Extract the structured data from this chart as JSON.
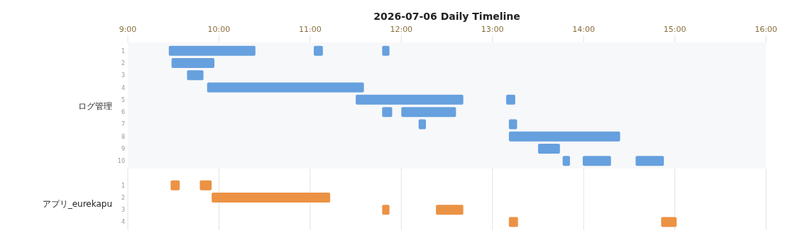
{
  "chart_data": [
    {
      "type": "bar",
      "orientation": "horizontal",
      "title": "2026-07-06 Daily Timeline",
      "ylabel": "ログ管理",
      "categories": [
        "1",
        "2",
        "3",
        "4",
        "5",
        "6",
        "7",
        "8",
        "9",
        "10"
      ],
      "xlim": [
        9,
        16
      ],
      "xticks": [
        {
          "value": 9,
          "label": "9:00"
        },
        {
          "value": 10,
          "label": "10:00"
        },
        {
          "value": 11,
          "label": "11:00"
        },
        {
          "value": 12,
          "label": "12:00"
        },
        {
          "value": 13,
          "label": "13:00"
        },
        {
          "value": 14,
          "label": "14:00"
        },
        {
          "value": 15,
          "label": "15:00"
        },
        {
          "value": 16,
          "label": "16:00"
        }
      ],
      "grid": false,
      "series": [
        {
          "color": "#66a0de",
          "base": [
            9.45,
            9.48,
            9.65,
            9.87,
            11.5,
            11.79,
            12.19,
            13.18,
            13.5,
            13.77
          ],
          "values": [
            0.95,
            0.47,
            0.18,
            1.72,
            1.18,
            0.11,
            0.08,
            1.22,
            0.24,
            0.08
          ]
        },
        {
          "color": "#66a0de",
          "base": [
            11.04,
            null,
            null,
            null,
            13.15,
            12.0,
            13.18,
            null,
            null,
            13.99
          ],
          "values": [
            0.1,
            null,
            null,
            null,
            0.1,
            0.6,
            0.09,
            null,
            null,
            0.31
          ]
        },
        {
          "color": "#66a0de",
          "base": [
            11.79,
            null,
            null,
            null,
            null,
            null,
            null,
            null,
            null,
            14.57
          ],
          "values": [
            0.08,
            null,
            null,
            null,
            null,
            null,
            null,
            null,
            null,
            0.31
          ]
        }
      ]
    },
    {
      "type": "bar",
      "orientation": "horizontal",
      "ylabel": "アプリ_eurekapu",
      "categories": [
        "1",
        "2",
        "3",
        "4"
      ],
      "xlim": [
        9,
        16
      ],
      "xticks": [
        {
          "value": 9,
          "label": null
        },
        {
          "value": 10,
          "label": null
        },
        {
          "value": 11,
          "label": null
        },
        {
          "value": 12,
          "label": null
        },
        {
          "value": 13,
          "label": null
        },
        {
          "value": 14,
          "label": null
        },
        {
          "value": 15,
          "label": null
        },
        {
          "value": 16,
          "label": null
        }
      ],
      "grid": "x",
      "tick_labels": "y",
      "series": [
        {
          "color": "#ec9244",
          "base": [
            9.47,
            9.92,
            11.79,
            13.18
          ],
          "values": [
            0.1,
            1.3,
            0.08,
            0.1
          ]
        },
        {
          "color": "#ec9244",
          "base": [
            9.79,
            null,
            12.38,
            14.85
          ],
          "values": [
            0.13,
            null,
            0.3,
            0.17
          ]
        }
      ]
    }
  ]
}
